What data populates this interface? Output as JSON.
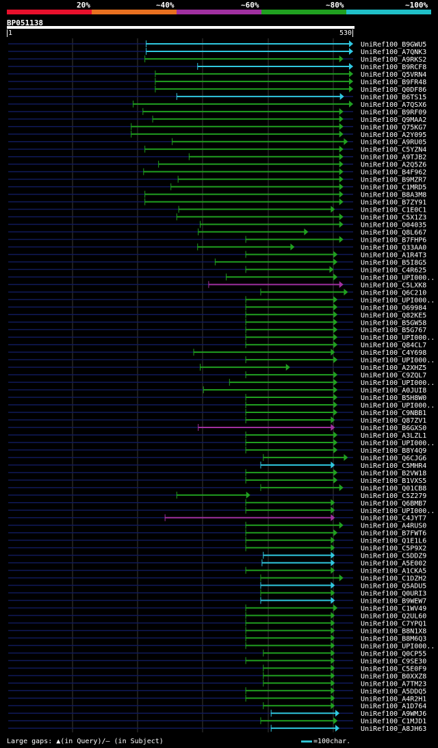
{
  "legend": {
    "labels": [
      "20%",
      "~40%",
      "~60%",
      "~80%",
      "~100%"
    ],
    "colors": [
      "#e8102c",
      "#e87020",
      "#a030a0",
      "#20a020",
      "#20c0c8"
    ]
  },
  "query": {
    "name": "BP051138",
    "start": "1",
    "end": "530"
  },
  "footer": {
    "gaps_label": "Large gaps: ▲(in Query)/– (in Subject)",
    "scale_label": "=100char."
  },
  "colors": {
    "cyan": "#30c8e0",
    "green": "#20a020",
    "purple": "#a030a0",
    "background_line": "#101a5a"
  },
  "chart_data": {
    "type": "alignment",
    "query_length": 530,
    "hits": [
      {
        "name": "UniRef100_B9GWU5",
        "start": 212,
        "end": 530,
        "color": "cyan"
      },
      {
        "name": "UniRef100_A7QNK3",
        "start": 212,
        "end": 530,
        "color": "cyan"
      },
      {
        "name": "UniRef100_A9RKS2",
        "start": 210,
        "end": 515,
        "color": "green"
      },
      {
        "name": "UniRef100_B9RCF8",
        "start": 291,
        "end": 530,
        "color": "cyan"
      },
      {
        "name": "UniRef100_Q5VRN4",
        "start": 226,
        "end": 530,
        "color": "green"
      },
      {
        "name": "UniRef100_B9FR48",
        "start": 226,
        "end": 530,
        "color": "green"
      },
      {
        "name": "UniRef100_Q0DF86",
        "start": 226,
        "end": 530,
        "color": "green"
      },
      {
        "name": "UniRef100_B6TS15",
        "start": 259,
        "end": 516,
        "color": "cyan"
      },
      {
        "name": "UniRef100_A7QSX6",
        "start": 192,
        "end": 530,
        "color": "green"
      },
      {
        "name": "UniRef100_B9RF09",
        "start": 207,
        "end": 515,
        "color": "green"
      },
      {
        "name": "UniRef100_Q9MAA2",
        "start": 222,
        "end": 515,
        "color": "green"
      },
      {
        "name": "UniRef100_Q75KG7",
        "start": 189,
        "end": 515,
        "color": "green"
      },
      {
        "name": "UniRef100_A2Y095",
        "start": 189,
        "end": 515,
        "color": "green"
      },
      {
        "name": "UniRef100_A9RU05",
        "start": 252,
        "end": 522,
        "color": "green"
      },
      {
        "name": "UniRef100_C5YZN4",
        "start": 210,
        "end": 515,
        "color": "green"
      },
      {
        "name": "UniRef100_A9TJB2",
        "start": 278,
        "end": 515,
        "color": "green"
      },
      {
        "name": "UniRef100_A2Q5Z6",
        "start": 231,
        "end": 515,
        "color": "green"
      },
      {
        "name": "UniRef100_B4F962",
        "start": 208,
        "end": 515,
        "color": "green"
      },
      {
        "name": "UniRef100_B9MZR7",
        "start": 261,
        "end": 515,
        "color": "green"
      },
      {
        "name": "UniRef100_C1MRD5",
        "start": 250,
        "end": 515,
        "color": "green"
      },
      {
        "name": "UniRef100_B8A3M8",
        "start": 210,
        "end": 515,
        "color": "green"
      },
      {
        "name": "UniRef100_B7ZY91",
        "start": 210,
        "end": 515,
        "color": "green"
      },
      {
        "name": "UniRef100_C1E0C1",
        "start": 262,
        "end": 502,
        "color": "green"
      },
      {
        "name": "UniRef100_C5X1Z3",
        "start": 259,
        "end": 515,
        "color": "green"
      },
      {
        "name": "UniRef100_O04035",
        "start": 295,
        "end": 515,
        "color": "green"
      },
      {
        "name": "UniRef100_Q8L667",
        "start": 292,
        "end": 461,
        "color": "green"
      },
      {
        "name": "UniRef100_B7FHP6",
        "start": 365,
        "end": 515,
        "color": "green"
      },
      {
        "name": "UniRef100_Q33AA0",
        "start": 291,
        "end": 440,
        "color": "green"
      },
      {
        "name": "UniRef100_A1R4T3",
        "start": 365,
        "end": 506,
        "color": "green"
      },
      {
        "name": "UniRef100_B5I8G5",
        "start": 318,
        "end": 506,
        "color": "green"
      },
      {
        "name": "UniRef100_C4R625",
        "start": 365,
        "end": 500,
        "color": "green"
      },
      {
        "name": "UniRef100_UPI000..",
        "start": 335,
        "end": 506,
        "color": "green"
      },
      {
        "name": "UniRef100_C5LXK8",
        "start": 308,
        "end": 515,
        "color": "purple"
      },
      {
        "name": "UniRef100_Q6C210",
        "start": 388,
        "end": 522,
        "color": "green"
      },
      {
        "name": "UniRef100_UPI000..",
        "start": 365,
        "end": 506,
        "color": "green"
      },
      {
        "name": "UniRef100_O69984",
        "start": 365,
        "end": 506,
        "color": "green"
      },
      {
        "name": "UniRef100_Q82KE5",
        "start": 365,
        "end": 506,
        "color": "green"
      },
      {
        "name": "UniRef100_B5GW58",
        "start": 365,
        "end": 506,
        "color": "green"
      },
      {
        "name": "UniRef100_B5G767",
        "start": 365,
        "end": 506,
        "color": "green"
      },
      {
        "name": "UniRef100_UPI000..",
        "start": 365,
        "end": 506,
        "color": "green"
      },
      {
        "name": "UniRef100_Q84CL7",
        "start": 365,
        "end": 506,
        "color": "green"
      },
      {
        "name": "UniRef100_C4Y698",
        "start": 285,
        "end": 502,
        "color": "green"
      },
      {
        "name": "UniRef100_UPI000..",
        "start": 365,
        "end": 506,
        "color": "green"
      },
      {
        "name": "UniRef100_A2XHZ5",
        "start": 295,
        "end": 433,
        "color": "green"
      },
      {
        "name": "UniRef100_C9ZQL7",
        "start": 365,
        "end": 506,
        "color": "green"
      },
      {
        "name": "UniRef100_UPI000..",
        "start": 340,
        "end": 506,
        "color": "green"
      },
      {
        "name": "UniRef100_A0JUI8",
        "start": 300,
        "end": 506,
        "color": "green"
      },
      {
        "name": "UniRef100_B5H8W0",
        "start": 365,
        "end": 506,
        "color": "green"
      },
      {
        "name": "UniRef100_UPI000..",
        "start": 365,
        "end": 506,
        "color": "green"
      },
      {
        "name": "UniRef100_C9NBB1",
        "start": 365,
        "end": 506,
        "color": "green"
      },
      {
        "name": "UniRef100_Q87ZV1",
        "start": 365,
        "end": 502,
        "color": "green"
      },
      {
        "name": "UniRef100_B6GXS0",
        "start": 292,
        "end": 502,
        "color": "purple"
      },
      {
        "name": "UniRef100_A3LZL1",
        "start": 365,
        "end": 506,
        "color": "green"
      },
      {
        "name": "UniRef100_UPI000..",
        "start": 365,
        "end": 506,
        "color": "green"
      },
      {
        "name": "UniRef100_B8Y4Q9",
        "start": 365,
        "end": 506,
        "color": "green"
      },
      {
        "name": "UniRef100_Q6CJG6",
        "start": 392,
        "end": 522,
        "color": "green"
      },
      {
        "name": "UniRef100_C5MHR4",
        "start": 388,
        "end": 502,
        "color": "cyan"
      },
      {
        "name": "UniRef100_B2VW18",
        "start": 365,
        "end": 506,
        "color": "green"
      },
      {
        "name": "UniRef100_B1VXS5",
        "start": 365,
        "end": 506,
        "color": "green"
      },
      {
        "name": "UniRef100_Q01CB8",
        "start": 388,
        "end": 515,
        "color": "green"
      },
      {
        "name": "UniRef100_C5Z279",
        "start": 259,
        "end": 372,
        "color": "green"
      },
      {
        "name": "UniRef100_Q6BMB7",
        "start": 365,
        "end": 502,
        "color": "green"
      },
      {
        "name": "UniRef100_UPI000..",
        "start": 365,
        "end": 502,
        "color": "green"
      },
      {
        "name": "UniRef100_C4JYT7",
        "start": 241,
        "end": 502,
        "color": "purple"
      },
      {
        "name": "UniRef100_A4RUS0",
        "start": 365,
        "end": 515,
        "color": "green"
      },
      {
        "name": "UniRef100_B7FWT6",
        "start": 365,
        "end": 506,
        "color": "green"
      },
      {
        "name": "UniRef100_Q1E1L6",
        "start": 365,
        "end": 502,
        "color": "green"
      },
      {
        "name": "UniRef100_C5P9X2",
        "start": 365,
        "end": 502,
        "color": "green"
      },
      {
        "name": "UniRef100_C5DDZ9",
        "start": 392,
        "end": 502,
        "color": "cyan"
      },
      {
        "name": "UniRef100_A5E002",
        "start": 390,
        "end": 502,
        "color": "cyan"
      },
      {
        "name": "UniRef100_A1CKA5",
        "start": 365,
        "end": 502,
        "color": "green"
      },
      {
        "name": "UniRef100_C1DZH2",
        "start": 388,
        "end": 515,
        "color": "green"
      },
      {
        "name": "UniRef100_Q5ADU5",
        "start": 388,
        "end": 502,
        "color": "cyan"
      },
      {
        "name": "UniRef100_Q0URI3",
        "start": 388,
        "end": 502,
        "color": "green"
      },
      {
        "name": "UniRef100_B9WEW7",
        "start": 388,
        "end": 502,
        "color": "cyan"
      },
      {
        "name": "UniRef100_C1WV49",
        "start": 365,
        "end": 506,
        "color": "green"
      },
      {
        "name": "UniRef100_Q2UL60",
        "start": 365,
        "end": 502,
        "color": "green"
      },
      {
        "name": "UniRef100_C7YPQ1",
        "start": 365,
        "end": 502,
        "color": "green"
      },
      {
        "name": "UniRef100_B8N1X8",
        "start": 365,
        "end": 502,
        "color": "green"
      },
      {
        "name": "UniRef100_B8M6Q3",
        "start": 365,
        "end": 502,
        "color": "green"
      },
      {
        "name": "UniRef100_UPI000..",
        "start": 365,
        "end": 502,
        "color": "green"
      },
      {
        "name": "UniRef100_Q0CP55",
        "start": 392,
        "end": 502,
        "color": "green"
      },
      {
        "name": "UniRef100_C9SE30",
        "start": 365,
        "end": 502,
        "color": "green"
      },
      {
        "name": "UniRef100_C5E0F9",
        "start": 392,
        "end": 502,
        "color": "green"
      },
      {
        "name": "UniRef100_B0XXZ8",
        "start": 392,
        "end": 502,
        "color": "green"
      },
      {
        "name": "UniRef100_A7TM23",
        "start": 392,
        "end": 502,
        "color": "green"
      },
      {
        "name": "UniRef100_A5DDQ5",
        "start": 365,
        "end": 502,
        "color": "green"
      },
      {
        "name": "UniRef100_A4R2H1",
        "start": 365,
        "end": 502,
        "color": "green"
      },
      {
        "name": "UniRef100_A1D764",
        "start": 392,
        "end": 502,
        "color": "green"
      },
      {
        "name": "UniRef100_A9WMJ6",
        "start": 404,
        "end": 509,
        "color": "cyan"
      },
      {
        "name": "UniRef100_C1MJD1",
        "start": 388,
        "end": 506,
        "color": "green"
      },
      {
        "name": "UniRef100_A8JH63",
        "start": 404,
        "end": 509,
        "color": "cyan"
      }
    ]
  }
}
